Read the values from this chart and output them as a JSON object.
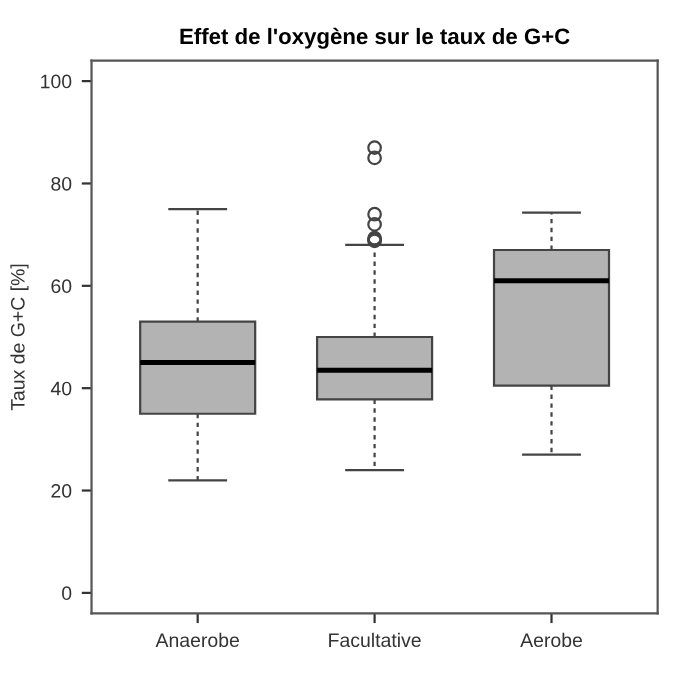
{
  "chart_data": {
    "type": "box",
    "title": "Effet de l'oxygène sur le taux de G+C",
    "ylabel": "Taux de G+C [%]",
    "categories": [
      "Anaerobe",
      "Facultative",
      "Aerobe"
    ],
    "boxes": [
      {
        "low": 22,
        "q1": 35,
        "median": 45,
        "q3": 53,
        "high": 75
      },
      {
        "low": 24,
        "q1": 37.8,
        "median": 43.5,
        "q3": 50,
        "high": 68,
        "outliers": [
          68.8,
          69,
          69.3,
          72,
          74,
          85,
          87
        ]
      },
      {
        "low": 27,
        "q1": 40.5,
        "median": 61,
        "q3": 67,
        "high": 74.3
      }
    ],
    "color": "#b3b3b3",
    "ylim": [
      -4,
      104
    ],
    "yticks": [
      0,
      20,
      40,
      60,
      80,
      100
    ],
    "grid": false
  }
}
